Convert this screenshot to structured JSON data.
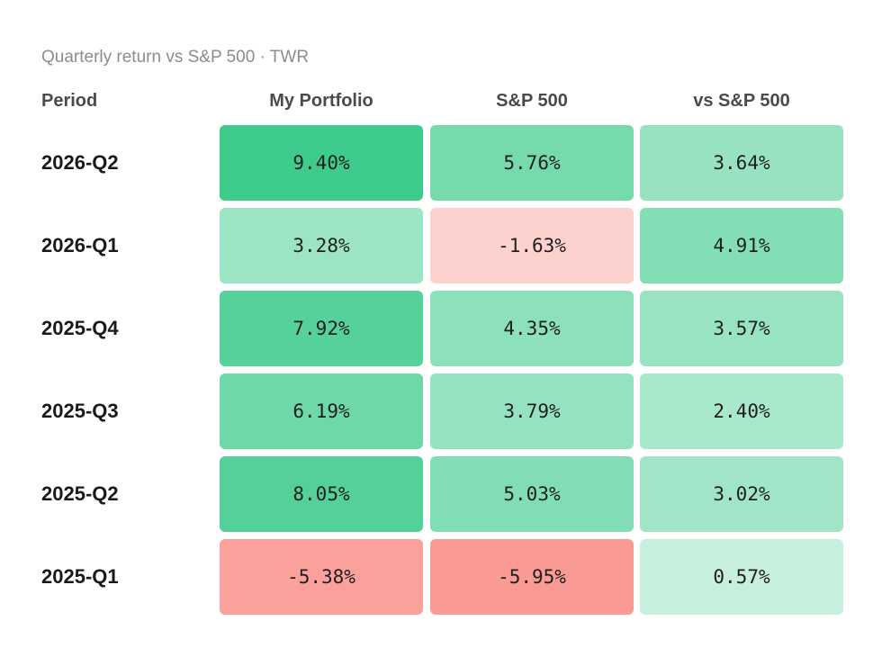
{
  "subtitle": "Quarterly return vs S&P 500 · TWR",
  "chart_data": {
    "type": "heatmap",
    "title": "",
    "subtitle": "Quarterly return vs S&P 500 · TWR",
    "row_header": "Period",
    "columns": [
      "My Portfolio",
      "S&P 500",
      "vs S&P 500"
    ],
    "rows": [
      {
        "period": "2026-Q2",
        "values": [
          9.4,
          5.76,
          3.64
        ],
        "labels": [
          "9.40%",
          "5.76%",
          "3.64%"
        ]
      },
      {
        "period": "2026-Q1",
        "values": [
          3.28,
          -1.63,
          4.91
        ],
        "labels": [
          "3.28%",
          "-1.63%",
          "4.91%"
        ]
      },
      {
        "period": "2025-Q4",
        "values": [
          7.92,
          4.35,
          3.57
        ],
        "labels": [
          "7.92%",
          "4.35%",
          "3.57%"
        ]
      },
      {
        "period": "2025-Q3",
        "values": [
          6.19,
          3.79,
          2.4
        ],
        "labels": [
          "6.19%",
          "3.79%",
          "2.40%"
        ]
      },
      {
        "period": "2025-Q2",
        "values": [
          8.05,
          5.03,
          3.02
        ],
        "labels": [
          "8.05%",
          "5.03%",
          "3.02%"
        ]
      },
      {
        "period": "2025-Q1",
        "values": [
          -5.38,
          -5.95,
          0.57
        ],
        "labels": [
          "-5.38%",
          "-5.95%",
          "0.57%"
        ]
      }
    ],
    "color_scale": {
      "positive": "#3ecb8c",
      "negative": "#fa9a94"
    }
  }
}
